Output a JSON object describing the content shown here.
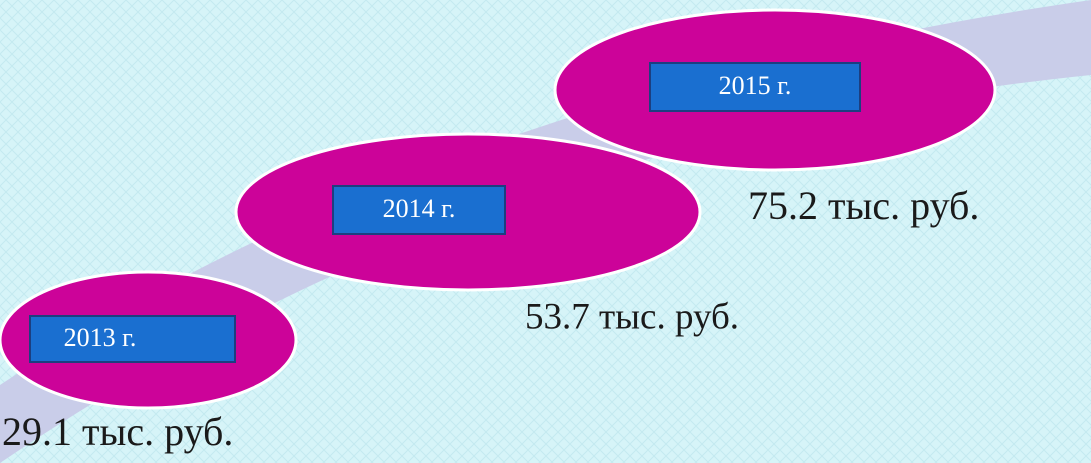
{
  "nodes": [
    {
      "label": "2013 г.",
      "value": "29.1 тыс. руб."
    },
    {
      "label": "2014 г.",
      "value": "53.7 тыс. руб."
    },
    {
      "label": "2015 г.",
      "value": "75.2 тыс. руб."
    }
  ]
}
